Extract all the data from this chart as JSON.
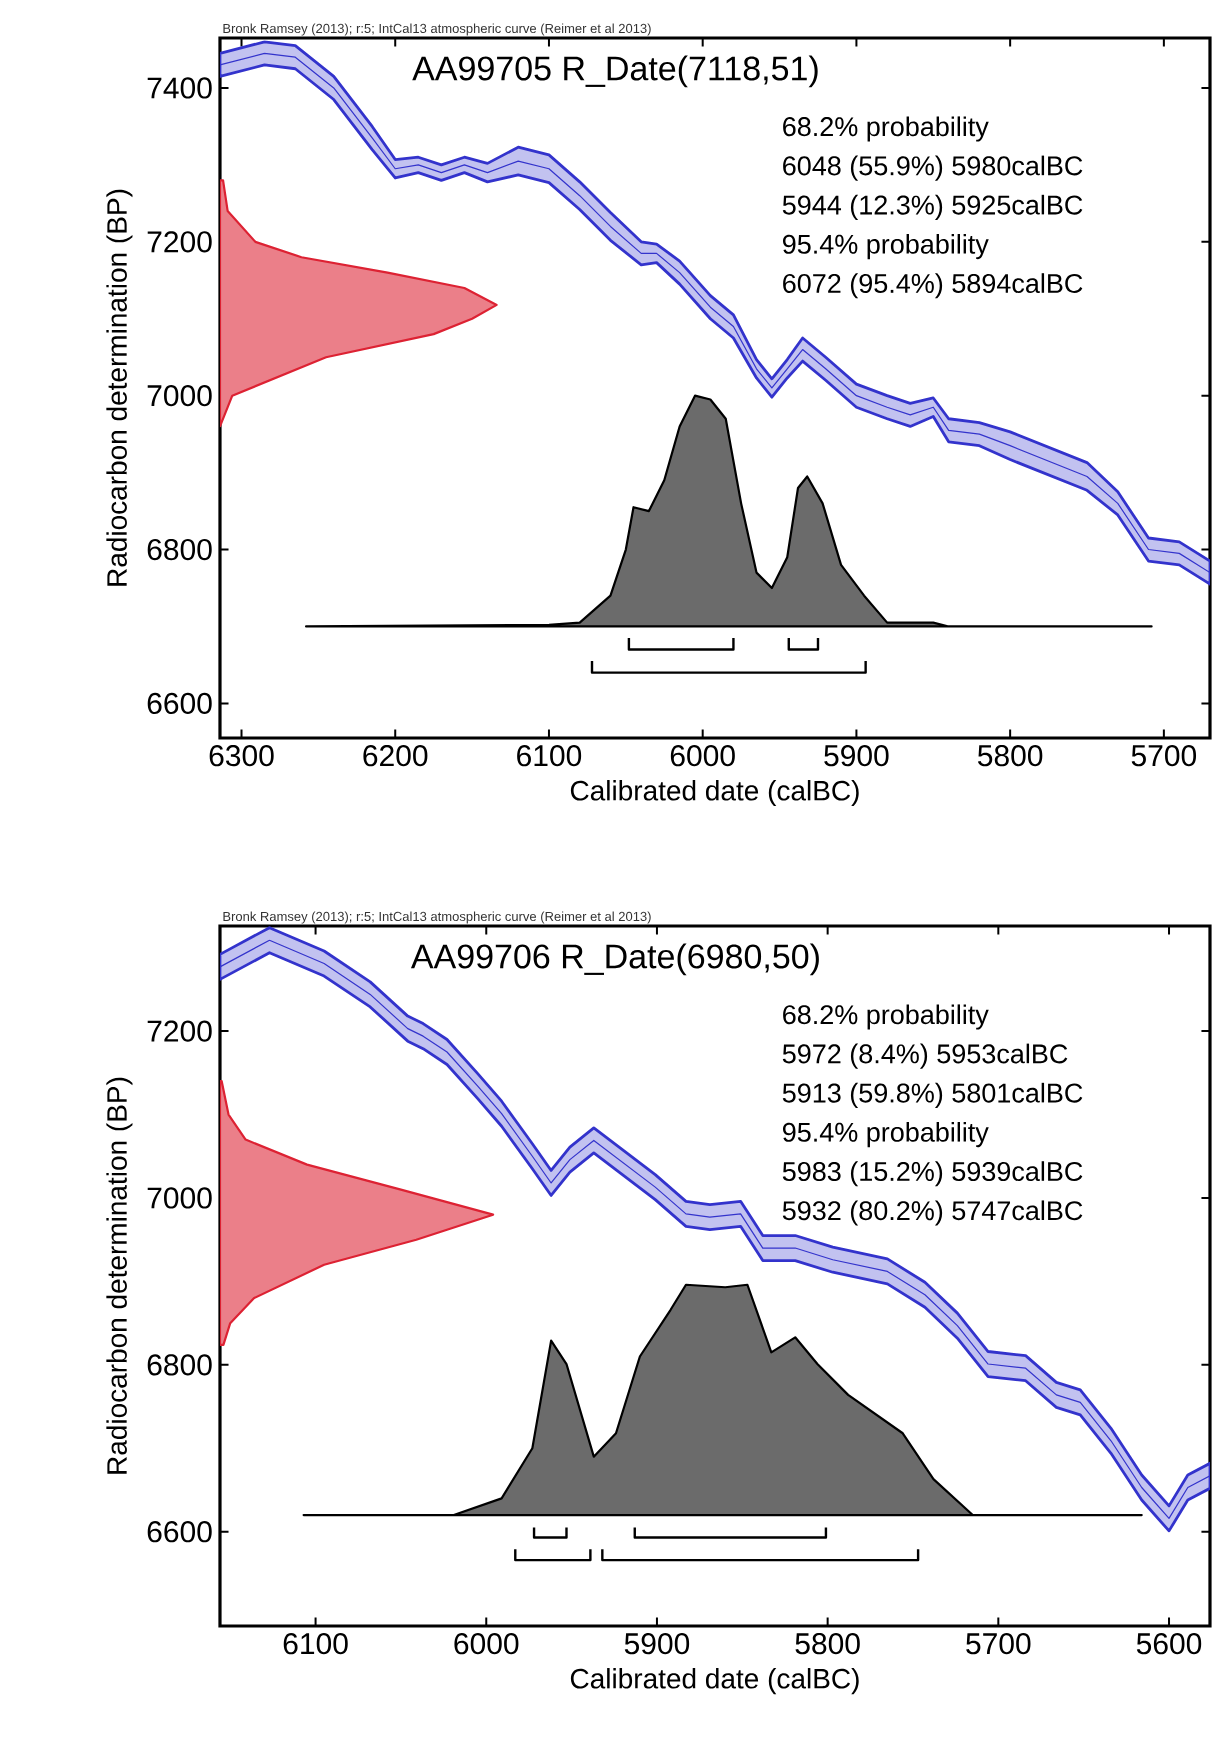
{
  "chart_data": [
    {
      "type": "line",
      "title": "AA99705 R_Date(7118,51)",
      "xlabel": "Calibrated date (calBC)",
      "ylabel": "Radiocarbon determination (BP)",
      "annotations": [
        "Bronk Ramsey (2013); r:5; IntCal13 atmospheric curve (Reimer et al 2013)",
        "68.2% probability",
        "6048 (55.9%) 5980calBC",
        "5944 (12.3%) 5925calBC",
        "95.4% probability",
        "6072 (95.4%) 5894calBC"
      ],
      "xlim": [
        6314,
        5670
      ],
      "ylim": [
        6555,
        7465
      ],
      "xticks": [
        6300,
        6200,
        6100,
        6000,
        5900,
        5800,
        5700
      ],
      "yticks": [
        6600,
        6800,
        7000,
        7200,
        7400
      ],
      "grid": false,
      "marker": "none",
      "series": [
        {
          "type": "line",
          "color": "#3333cc",
          "x": [
            6314,
            6285,
            6265,
            6240,
            6215,
            6200,
            6185,
            6170,
            6155,
            6140,
            6120,
            6100,
            6080,
            6060,
            6040,
            6030,
            6015,
            5995,
            5980,
            5965,
            5955,
            5945,
            5935,
            5920,
            5900,
            5880,
            5865,
            5850,
            5840,
            5820,
            5800,
            5775,
            5750,
            5730,
            5710,
            5690,
            5670
          ],
          "values": [
            7430,
            7445,
            7440,
            7400,
            7335,
            7295,
            7300,
            7290,
            7300,
            7290,
            7305,
            7295,
            7260,
            7220,
            7185,
            7185,
            7160,
            7115,
            7090,
            7035,
            7010,
            7035,
            7060,
            7035,
            7000,
            6985,
            6975,
            6985,
            6955,
            6950,
            6935,
            6915,
            6895,
            6860,
            6800,
            6795,
            6770
          ],
          "lower": [
            7415,
            7430,
            7425,
            7385,
            7320,
            7283,
            7290,
            7280,
            7290,
            7278,
            7287,
            7277,
            7242,
            7202,
            7170,
            7173,
            7145,
            7100,
            7075,
            7023,
            6998,
            7023,
            7045,
            7020,
            6985,
            6970,
            6960,
            6973,
            6940,
            6935,
            6917,
            6897,
            6877,
            6845,
            6785,
            6780,
            6755
          ],
          "upper": [
            7445,
            7460,
            7455,
            7415,
            7350,
            7307,
            7310,
            7300,
            7310,
            7302,
            7323,
            7313,
            7278,
            7238,
            7200,
            7197,
            7175,
            7130,
            7105,
            7047,
            7022,
            7047,
            7075,
            7050,
            7015,
            7000,
            6990,
            6997,
            6970,
            6965,
            6953,
            6933,
            6913,
            6875,
            6815,
            6810,
            6785
          ]
        },
        {
          "type": "area",
          "color": "#dd2233",
          "x": [
            6314,
            6306,
            6245,
            6175,
            6150,
            6134,
            6155,
            6205,
            6261,
            6291,
            6309,
            6312,
            6314
          ],
          "values": [
            6960,
            7000,
            7050,
            7080,
            7100,
            7118,
            7140,
            7160,
            7180,
            7200,
            7240,
            7280,
            7280
          ]
        },
        {
          "type": "area",
          "color": "#000000",
          "x": [
            6258,
            6100,
            6080,
            6060,
            6050,
            6045,
            6035,
            6025,
            6015,
            6005,
            5995,
            5985,
            5975,
            5965,
            5955,
            5945,
            5938,
            5932,
            5922,
            5910,
            5895,
            5880,
            5850,
            5840,
            5708
          ],
          "values": [
            6700,
            6702,
            6705,
            6740,
            6800,
            6855,
            6850,
            6890,
            6960,
            7000,
            6995,
            6970,
            6860,
            6770,
            6750,
            6790,
            6880,
            6895,
            6860,
            6780,
            6740,
            6705,
            6705,
            6700,
            6700
          ]
        },
        {
          "type": "line",
          "color": "#000000",
          "x": [
            6048,
            6048,
            5980,
            5980
          ],
          "values": [
            6685,
            6670,
            6670,
            6685
          ]
        },
        {
          "type": "line",
          "color": "#000000",
          "x": [
            5944,
            5944,
            5925,
            5925
          ],
          "values": [
            6685,
            6670,
            6670,
            6685
          ]
        },
        {
          "type": "line",
          "color": "#000000",
          "x": [
            6072,
            6072,
            5894,
            5894
          ],
          "values": [
            6655,
            6640,
            6640,
            6655
          ]
        }
      ]
    },
    {
      "type": "line",
      "title": "AA99706 R_Date(6980,50)",
      "xlabel": "Calibrated date (calBC)",
      "ylabel": "Radiocarbon determination (BP)",
      "annotations": [
        "Bronk Ramsey (2013); r:5; IntCal13 atmospheric curve (Reimer et al 2013)",
        "68.2% probability",
        "5972 (8.4%) 5953calBC",
        "5913 (59.8%) 5801calBC",
        "95.4% probability",
        "5983 (15.2%) 5939calBC",
        "5932 (80.2%) 5747calBC"
      ],
      "xlim": [
        6156,
        5576
      ],
      "ylim": [
        6487,
        7326
      ],
      "xticks": [
        6100,
        6000,
        5900,
        5800,
        5700,
        5600
      ],
      "yticks": [
        6600,
        6800,
        7000,
        7200
      ],
      "grid": false,
      "marker": "none",
      "series": [
        {
          "type": "line",
          "color": "#3333cc",
          "x": [
            6156,
            6127,
            6095,
            6068,
            6046,
            6037,
            6023,
            6005,
            5991,
            5973,
            5962,
            5951,
            5937,
            5919,
            5901,
            5883,
            5869,
            5851,
            5838,
            5819,
            5797,
            5765,
            5743,
            5724,
            5706,
            5684,
            5666,
            5652,
            5634,
            5616,
            5600,
            5589,
            5576
          ],
          "values": [
            7277,
            7309,
            7281,
            7244,
            7203,
            7194,
            7175,
            7134,
            7101,
            7050,
            7018,
            7046,
            7069,
            7041,
            7013,
            6981,
            6977,
            6981,
            6940,
            6940,
            6926,
            6912,
            6884,
            6847,
            6801,
            6796,
            6764,
            6755,
            6709,
            6653,
            6616,
            6653,
            6667
          ],
          "lower": [
            7262,
            7294,
            7266,
            7229,
            7188,
            7179,
            7160,
            7119,
            7086,
            7035,
            7003,
            7031,
            7054,
            7026,
            6998,
            6966,
            6962,
            6966,
            6925,
            6925,
            6911,
            6897,
            6869,
            6832,
            6786,
            6781,
            6749,
            6740,
            6694,
            6638,
            6601,
            6638,
            6652
          ],
          "upper": [
            7292,
            7324,
            7296,
            7259,
            7218,
            7209,
            7190,
            7149,
            7116,
            7065,
            7033,
            7061,
            7084,
            7056,
            7028,
            6996,
            6992,
            6996,
            6955,
            6955,
            6941,
            6927,
            6899,
            6862,
            6816,
            6811,
            6779,
            6770,
            6724,
            6668,
            6631,
            6668,
            6682
          ]
        },
        {
          "type": "area",
          "color": "#dd2233",
          "x": [
            6156,
            6154,
            6150,
            6136,
            6095,
            6041,
            5996,
            6050,
            6105,
            6141,
            6151,
            6155,
            6156
          ],
          "values": [
            6824,
            6824,
            6850,
            6880,
            6920,
            6950,
            6980,
            7010,
            7040,
            7070,
            7100,
            7140,
            7140
          ]
        },
        {
          "type": "area",
          "color": "#000000",
          "x": [
            6107,
            6019,
            5991,
            5973,
            5962,
            5953,
            5937,
            5924,
            5910,
            5892,
            5883,
            5860,
            5847,
            5833,
            5819,
            5806,
            5788,
            5756,
            5738,
            5715,
            5616
          ],
          "values": [
            6620,
            6620,
            6640,
            6700,
            6829,
            6801,
            6690,
            6718,
            6810,
            6866,
            6896,
            6893,
            6896,
            6815,
            6833,
            6801,
            6764,
            6718,
            6663,
            6620,
            6620
          ]
        },
        {
          "type": "line",
          "color": "#000000",
          "x": [
            5972,
            5972,
            5953,
            5953
          ],
          "values": [
            6605,
            6593,
            6593,
            6605
          ]
        },
        {
          "type": "line",
          "color": "#000000",
          "x": [
            5913,
            5913,
            5801,
            5801
          ],
          "values": [
            6605,
            6593,
            6593,
            6605
          ]
        },
        {
          "type": "line",
          "color": "#000000",
          "x": [
            5983,
            5983,
            5939,
            5939
          ],
          "values": [
            6579,
            6566,
            6566,
            6579
          ]
        },
        {
          "type": "line",
          "color": "#000000",
          "x": [
            5932,
            5932,
            5747,
            5747
          ],
          "values": [
            6579,
            6566,
            6566,
            6579
          ]
        }
      ]
    }
  ]
}
